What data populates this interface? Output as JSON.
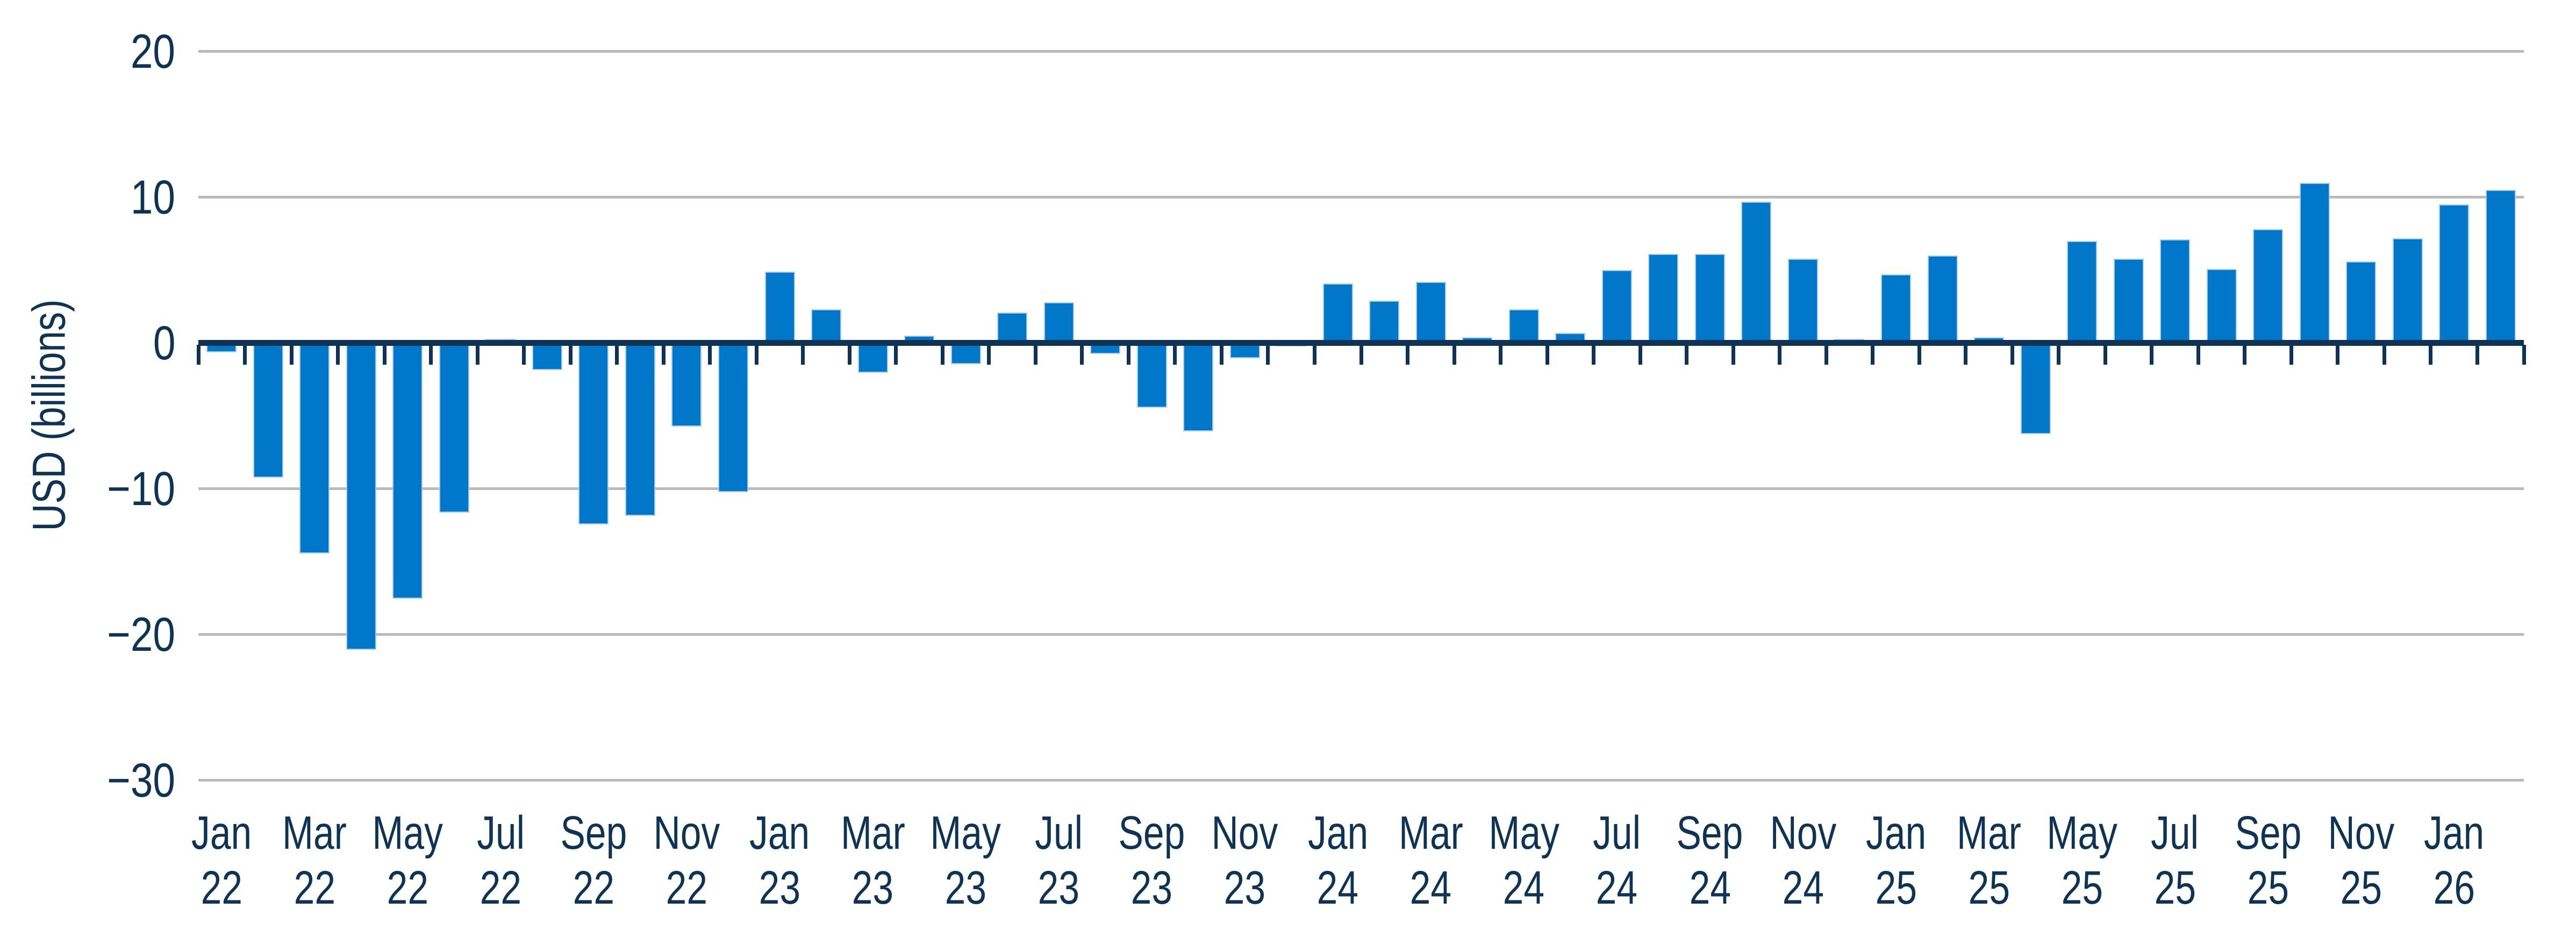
{
  "chart_data": {
    "type": "bar",
    "title": "",
    "xlabel": "",
    "ylabel": "USD (billions)",
    "ylim": [
      -30,
      20
    ],
    "grid": true,
    "legend": false,
    "bar_color": "#0077c8",
    "axis_color": "#0e3355",
    "grid_color": "#bababa",
    "categories": [
      "Jan 22",
      "Feb 22",
      "Mar 22",
      "Apr 22",
      "May 22",
      "Jun 22",
      "Jul 22",
      "Aug 22",
      "Sep 22",
      "Oct 22",
      "Nov 22",
      "Dec 22",
      "Jan 23",
      "Feb 23",
      "Mar 23",
      "Apr 23",
      "May 23",
      "Jun 23",
      "Jul 23",
      "Aug 23",
      "Sep 23",
      "Oct 23",
      "Nov 23",
      "Dec 23",
      "Jan 24",
      "Feb 24",
      "Mar 24",
      "Apr 24",
      "May 24",
      "Jun 24",
      "Jul 24",
      "Aug 24",
      "Sep 24",
      "Oct 24",
      "Nov 24",
      "Dec 24",
      "Jan 25",
      "Feb 25",
      "Mar 25",
      "Apr 25",
      "May 25",
      "Jun 25",
      "Jul 25",
      "Aug 25",
      "Sep 25",
      "Oct 25",
      "Nov 25",
      "Dec 25",
      "Jan 26",
      "Feb 26"
    ],
    "values": [
      -0.6,
      -9.2,
      -14.4,
      -21.0,
      -17.5,
      -11.6,
      0.2,
      -1.8,
      -12.4,
      -11.8,
      -5.7,
      -10.2,
      4.8,
      2.2,
      -2.0,
      0.4,
      -1.4,
      2.0,
      2.7,
      -0.7,
      -4.4,
      -6.0,
      -1.0,
      -0.2,
      4.0,
      2.8,
      4.1,
      0.3,
      2.2,
      0.6,
      4.9,
      6.0,
      6.0,
      9.6,
      5.7,
      0.2,
      4.6,
      5.9,
      0.3,
      -6.2,
      6.9,
      5.7,
      7.0,
      5.0,
      7.7,
      10.9,
      5.5,
      7.1,
      9.4,
      10.4
    ],
    "yticks": [
      {
        "value": 20,
        "label": "20"
      },
      {
        "value": 10,
        "label": "10"
      },
      {
        "value": 0,
        "label": "0"
      },
      {
        "value": -10,
        "label": "−10"
      },
      {
        "value": -20,
        "label": "−20"
      },
      {
        "value": -30,
        "label": "−30"
      }
    ],
    "xticks": [
      {
        "slot": 0,
        "month": "Jan",
        "year": "22"
      },
      {
        "slot": 2,
        "month": "Mar",
        "year": "22"
      },
      {
        "slot": 4,
        "month": "May",
        "year": "22"
      },
      {
        "slot": 6,
        "month": "Jul",
        "year": "22"
      },
      {
        "slot": 8,
        "month": "Sep",
        "year": "22"
      },
      {
        "slot": 10,
        "month": "Nov",
        "year": "22"
      },
      {
        "slot": 12,
        "month": "Jan",
        "year": "23"
      },
      {
        "slot": 14,
        "month": "Mar",
        "year": "23"
      },
      {
        "slot": 16,
        "month": "May",
        "year": "23"
      },
      {
        "slot": 18,
        "month": "Jul",
        "year": "23"
      },
      {
        "slot": 20,
        "month": "Sep",
        "year": "23"
      },
      {
        "slot": 22,
        "month": "Nov",
        "year": "23"
      },
      {
        "slot": 24,
        "month": "Jan",
        "year": "24"
      },
      {
        "slot": 26,
        "month": "Mar",
        "year": "24"
      },
      {
        "slot": 28,
        "month": "May",
        "year": "24"
      },
      {
        "slot": 30,
        "month": "Jul",
        "year": "24"
      },
      {
        "slot": 32,
        "month": "Sep",
        "year": "24"
      },
      {
        "slot": 34,
        "month": "Nov",
        "year": "24"
      },
      {
        "slot": 36,
        "month": "Jan",
        "year": "25"
      },
      {
        "slot": 38,
        "month": "Mar",
        "year": "25"
      },
      {
        "slot": 40,
        "month": "May",
        "year": "25"
      },
      {
        "slot": 42,
        "month": "Jul",
        "year": "25"
      },
      {
        "slot": 44,
        "month": "Sep",
        "year": "25"
      },
      {
        "slot": 46,
        "month": "Nov",
        "year": "25"
      },
      {
        "slot": 48,
        "month": "Jan",
        "year": "26"
      }
    ]
  }
}
